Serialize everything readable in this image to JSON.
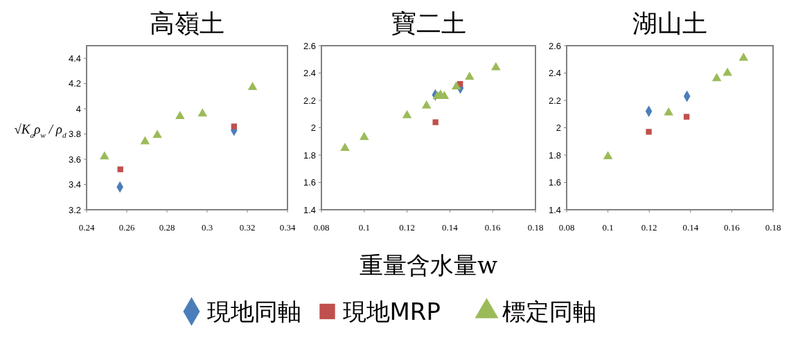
{
  "chart_data": [
    {
      "type": "scatter",
      "title": "高嶺土",
      "ylabel": "√K$_{a}$ρ$_{w}$ / ρ$_{d}$",
      "xlim": [
        0.24,
        0.34
      ],
      "xticks": [
        0.24,
        0.26,
        0.28,
        0.3,
        0.32,
        0.34
      ],
      "ylim": [
        3.2,
        4.5
      ],
      "yticks": [
        3.2,
        3.4,
        3.6,
        3.8,
        4,
        4.2,
        4.4
      ],
      "grid": false,
      "legend": false,
      "series": [
        {
          "color": "#4a7ebb",
          "marker": "diamond",
          "x": [
            0.2566,
            0.3134
          ],
          "values": [
            3.38,
            3.83
          ]
        },
        {
          "color": "#c0504d",
          "marker": "square",
          "x": [
            0.2568,
            0.3134
          ],
          "values": [
            3.52,
            3.86
          ]
        },
        {
          "color": "#9bbb59",
          "marker": "triangle",
          "x": [
            0.2489,
            0.2691,
            0.2752,
            0.2865,
            0.2977,
            0.3226
          ],
          "values": [
            3.62,
            3.74,
            3.79,
            3.94,
            3.96,
            4.17
          ]
        }
      ]
    },
    {
      "type": "scatter",
      "title": "寶二土",
      "xlabel": "重量含水量w",
      "xlim": [
        0.08,
        0.18
      ],
      "xticks": [
        0.08,
        0.1,
        0.12,
        0.14,
        0.16,
        0.18
      ],
      "ylim": [
        1.4,
        2.6
      ],
      "yticks": [
        1.4,
        1.6,
        1.8,
        2,
        2.2,
        2.4,
        2.6
      ],
      "grid": false,
      "legend": "bottom",
      "series": [
        {
          "name": "現地同軸",
          "color": "#4a7ebb",
          "marker": "diamond",
          "x": [
            0.1332,
            0.1449
          ],
          "values": [
            2.24,
            2.29
          ]
        },
        {
          "name": "現地MRP",
          "color": "#c0504d",
          "marker": "square",
          "x": [
            0.1333,
            0.1448
          ],
          "values": [
            2.04,
            2.32
          ]
        },
        {
          "name": "標定同軸",
          "color": "#9bbb59",
          "marker": "triangle",
          "x": [
            0.091,
            0.1,
            0.12,
            0.1291,
            0.1342,
            0.1356,
            0.1374,
            0.143,
            0.1492,
            0.1615
          ],
          "values": [
            1.85,
            1.93,
            2.09,
            2.16,
            2.23,
            2.24,
            2.23,
            2.3,
            2.37,
            2.44
          ]
        }
      ]
    },
    {
      "type": "scatter",
      "title": "湖山土",
      "xlim": [
        0.08,
        0.18
      ],
      "xticks": [
        0.08,
        0.1,
        0.12,
        0.14,
        0.16,
        0.18
      ],
      "ylim": [
        1.4,
        2.6
      ],
      "yticks": [
        1.4,
        1.6,
        1.8,
        2,
        2.2,
        2.4,
        2.6
      ],
      "grid": false,
      "legend": false,
      "series": [
        {
          "color": "#4a7ebb",
          "marker": "diamond",
          "x": [
            0.1198,
            0.1383
          ],
          "values": [
            2.12,
            2.23
          ]
        },
        {
          "color": "#c0504d",
          "marker": "square",
          "x": [
            0.1198,
            0.1381
          ],
          "values": [
            1.97,
            2.08
          ]
        },
        {
          "color": "#9bbb59",
          "marker": "triangle",
          "x": [
            0.1,
            0.1294,
            0.1527,
            0.1579,
            0.1657
          ],
          "values": [
            1.79,
            2.11,
            2.36,
            2.4,
            2.51
          ]
        }
      ]
    }
  ]
}
